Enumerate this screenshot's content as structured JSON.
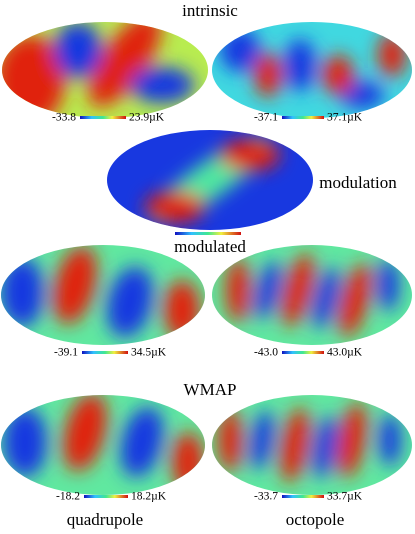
{
  "headings": {
    "intrinsic": "intrinsic",
    "modulation": "modulation",
    "modulated": "modulated",
    "wmap": "WMAP",
    "quadrupole": "quadrupole",
    "octopole": "octopole"
  },
  "panels": [
    {
      "min": "-33.8",
      "max": "23.9µK"
    },
    {
      "min": "-37.1",
      "max": "37.1µK"
    },
    {
      "min": "-39.1",
      "max": "34.5µK"
    },
    {
      "min": "-43.0",
      "max": "43.0µK"
    },
    {
      "min": "-18.2",
      "max": "18.2µK"
    },
    {
      "min": "-33.7",
      "max": "33.7µK"
    }
  ]
}
